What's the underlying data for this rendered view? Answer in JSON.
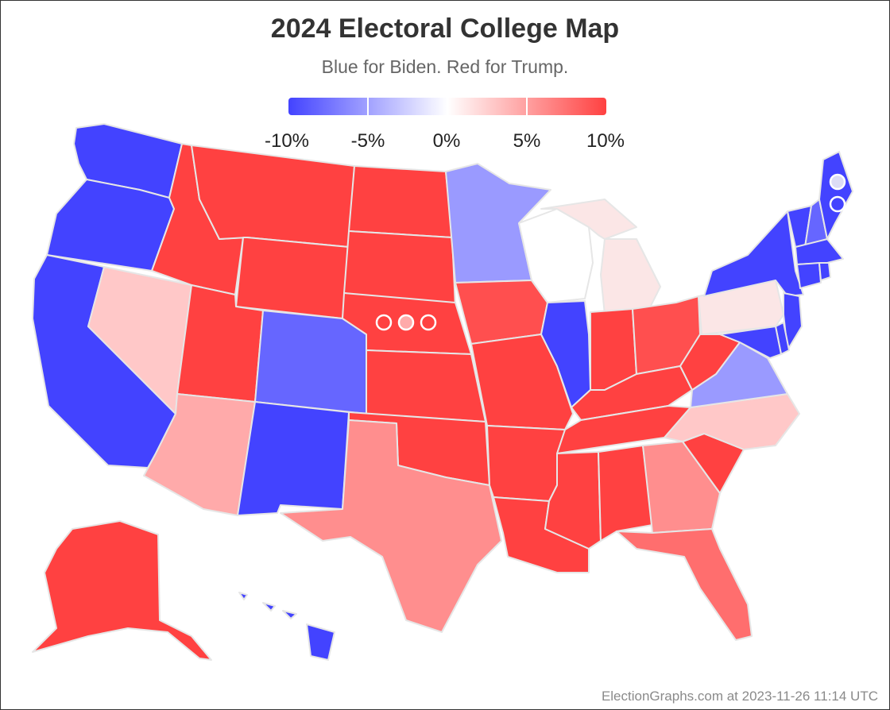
{
  "header": {
    "title": "2024 Electoral College Map",
    "subtitle": "Blue for Biden. Red for Trump."
  },
  "legend": {
    "labels": [
      "-10%",
      "-5%",
      "0%",
      "5%",
      "10%"
    ],
    "colors": {
      "strong_blue": "#4343ff",
      "white": "#ffffff",
      "strong_red": "#ff4141"
    }
  },
  "colors": {
    "solid_blue": "#4343ff",
    "strong_blue": "#6666ff",
    "lean_blue": "#9a9aff",
    "tossup_blue": "#dcdcf5",
    "tossup_white": "#ffffff",
    "tossup_red": "#fbe6e6",
    "lean_red_light": "#ffc8c8",
    "lean_red": "#ffaaaa",
    "strong_red": "#ff8e8e",
    "medium_red": "#ff6e6e",
    "solid_red": "#ff4141"
  },
  "map_data": {
    "states": [
      {
        "id": "WA",
        "color": "#4343ff"
      },
      {
        "id": "OR",
        "color": "#4343ff"
      },
      {
        "id": "CA",
        "color": "#4343ff"
      },
      {
        "id": "NV",
        "color": "#ffc8c8"
      },
      {
        "id": "ID",
        "color": "#ff4141"
      },
      {
        "id": "MT",
        "color": "#ff4141"
      },
      {
        "id": "WY",
        "color": "#ff4141"
      },
      {
        "id": "UT",
        "color": "#ff4141"
      },
      {
        "id": "AZ",
        "color": "#ffaaaa"
      },
      {
        "id": "CO",
        "color": "#6666ff"
      },
      {
        "id": "NM",
        "color": "#4343ff"
      },
      {
        "id": "ND",
        "color": "#ff4141"
      },
      {
        "id": "SD",
        "color": "#ff4141"
      },
      {
        "id": "NE",
        "color": "#ff4141"
      },
      {
        "id": "KS",
        "color": "#ff4141"
      },
      {
        "id": "OK",
        "color": "#ff4141"
      },
      {
        "id": "TX",
        "color": "#ff8e8e"
      },
      {
        "id": "MN",
        "color": "#9a9aff"
      },
      {
        "id": "IA",
        "color": "#ff4f4f"
      },
      {
        "id": "MO",
        "color": "#ff4141"
      },
      {
        "id": "AR",
        "color": "#ff4141"
      },
      {
        "id": "LA",
        "color": "#ff4141"
      },
      {
        "id": "WI",
        "color": "#ffffff"
      },
      {
        "id": "IL",
        "color": "#4343ff"
      },
      {
        "id": "MI",
        "color": "#fbe6e6"
      },
      {
        "id": "IN",
        "color": "#ff4141"
      },
      {
        "id": "OH",
        "color": "#ff4f4f"
      },
      {
        "id": "KY",
        "color": "#ff4141"
      },
      {
        "id": "TN",
        "color": "#ff4141"
      },
      {
        "id": "MS",
        "color": "#ff4141"
      },
      {
        "id": "AL",
        "color": "#ff4141"
      },
      {
        "id": "GA",
        "color": "#ff8e8e"
      },
      {
        "id": "FL",
        "color": "#ff6e6e"
      },
      {
        "id": "SC",
        "color": "#ff4141"
      },
      {
        "id": "NC",
        "color": "#ffc8c8"
      },
      {
        "id": "VA",
        "color": "#9a9aff"
      },
      {
        "id": "WV",
        "color": "#ff4141"
      },
      {
        "id": "PA",
        "color": "#fbe6e6"
      },
      {
        "id": "NY",
        "color": "#4343ff"
      },
      {
        "id": "VT",
        "color": "#4343ff"
      },
      {
        "id": "NH",
        "color": "#6666ff"
      },
      {
        "id": "ME",
        "color": "#4343ff"
      },
      {
        "id": "MA",
        "color": "#4343ff"
      },
      {
        "id": "CT",
        "color": "#4343ff"
      },
      {
        "id": "RI",
        "color": "#4343ff"
      },
      {
        "id": "NJ",
        "color": "#4343ff"
      },
      {
        "id": "DE",
        "color": "#4343ff"
      },
      {
        "id": "MD",
        "color": "#4343ff"
      },
      {
        "id": "AK",
        "color": "#ff4141"
      },
      {
        "id": "HI",
        "color": "#4343ff"
      }
    ],
    "districts": [
      {
        "id": "NE-1",
        "color": "#ff4141"
      },
      {
        "id": "NE-2",
        "color": "#ffaaaa"
      },
      {
        "id": "NE-3",
        "color": "#ff4141"
      },
      {
        "id": "ME-1",
        "color": "#dcdcf5"
      },
      {
        "id": "ME-2",
        "color": "#4343ff"
      }
    ]
  },
  "footer": {
    "credit": "ElectionGraphs.com at 2023-11-26 11:14 UTC"
  }
}
